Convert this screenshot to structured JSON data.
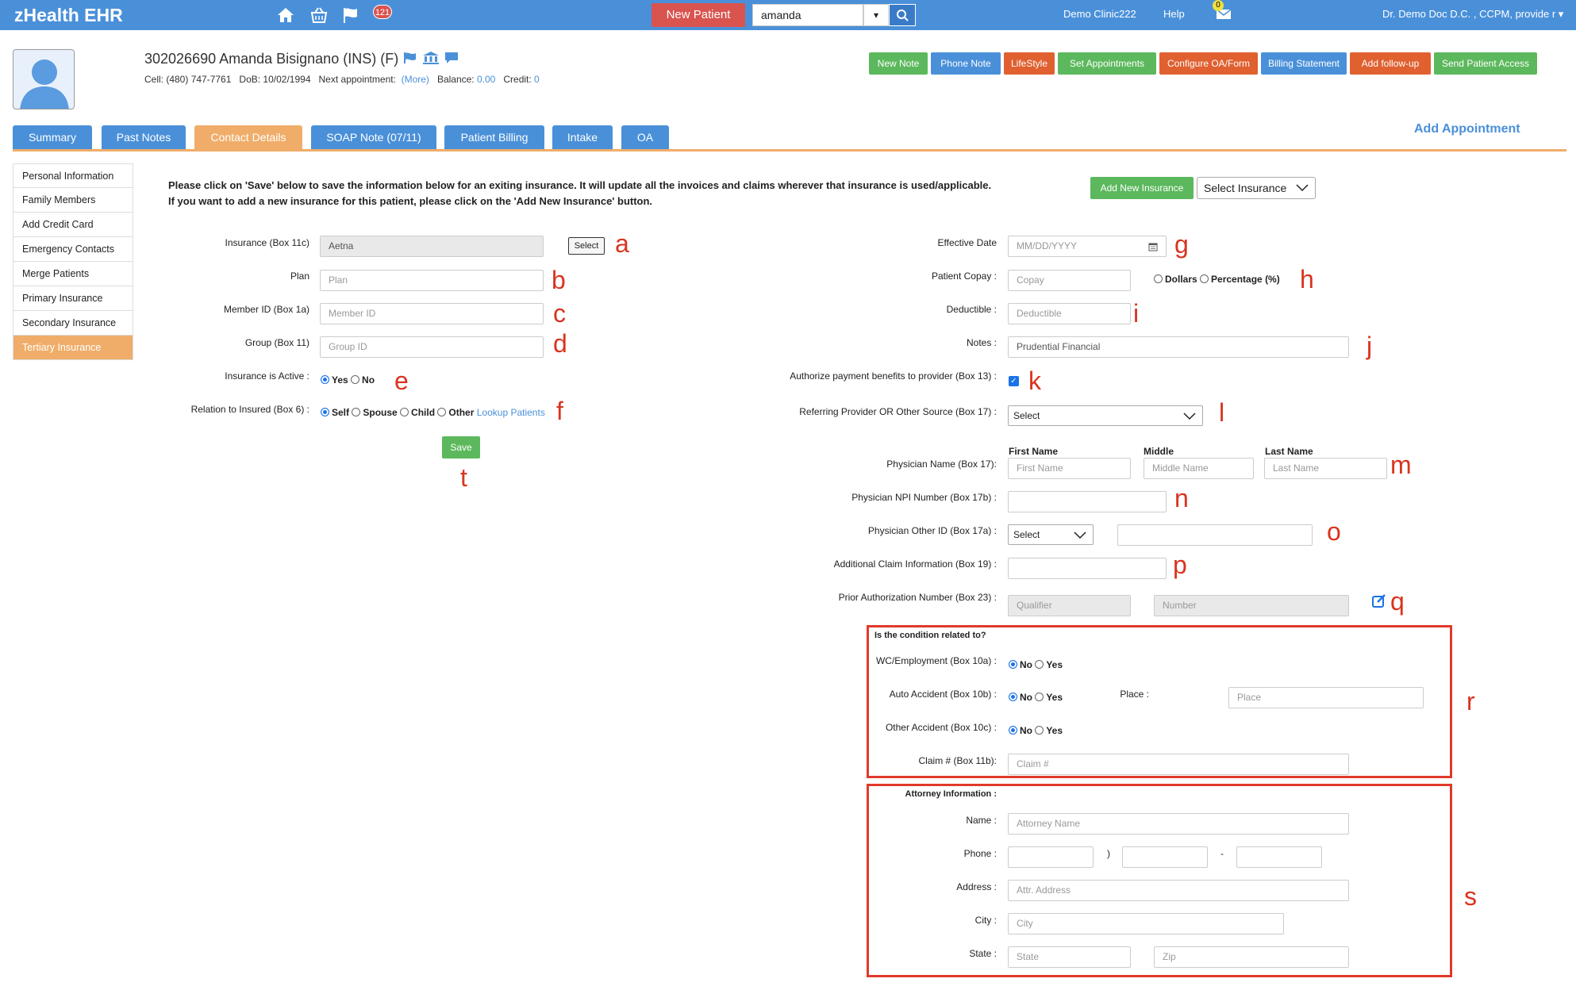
{
  "header": {
    "brand": "zHealth EHR",
    "notif_count": "121",
    "new_patient": "New Patient",
    "search_value": "amanda",
    "clinic": "Demo Clinic222",
    "help": "Help",
    "messages_count": "0",
    "user": "Dr. Demo Doc D.C. , CCPM, provide r"
  },
  "patient": {
    "title": "302026690 Amanda Bisignano  (INS) (F)",
    "cell": "Cell: (480) 747-7761",
    "dob": "DoB: 10/02/1994",
    "next_appt": "Next appointment:",
    "more": "(More)",
    "balance_label": "Balance:",
    "balance": "0.00",
    "credit_label": "Credit:",
    "credit": "0"
  },
  "actions": [
    "New Note",
    "Phone Note",
    "LifeStyle",
    "Set Appointments",
    "Configure OA/Form",
    "Billing Statement",
    "Add follow-up",
    "Send Patient Access"
  ],
  "tabs": [
    "Summary",
    "Past Notes",
    "Contact Details",
    "SOAP Note (07/11)",
    "Patient Billing",
    "Intake",
    "OA"
  ],
  "add_appointment": "Add Appointment",
  "sidebar": [
    "Personal Information",
    "Family Members",
    "Add Credit Card",
    "Emergency Contacts",
    "Merge Patients",
    "Primary Insurance",
    "Secondary Insurance",
    "Tertiary Insurance"
  ],
  "notice": {
    "line1": "Please click on 'Save' below to save the information below for an exiting insurance. It will update all the invoices and claims wherever that insurance is used/applicable.",
    "line2": "If you want to add a new insurance for this patient, please click on the 'Add New Insurance' button."
  },
  "add_new_insurance": "Add New Insurance",
  "select_insurance": "Select Insurance",
  "left_form": {
    "insurance_label": "Insurance (Box 11c)",
    "insurance_value": "Aetna",
    "select_btn": "Select",
    "plan_label": "Plan",
    "plan_ph": "Plan",
    "member_label": "Member ID (Box 1a)",
    "member_ph": "Member ID",
    "group_label": "Group (Box 11)",
    "group_ph": "Group ID",
    "active_label": "Insurance is Active :",
    "yes": "Yes",
    "no": "No",
    "relation_label": "Relation to Insured (Box 6) :",
    "self": "Self",
    "spouse": "Spouse",
    "child": "Child",
    "other": "Other",
    "lookup": "Lookup Patients",
    "save": "Save"
  },
  "right_form": {
    "eff_label": "Effective Date",
    "eff_ph": "MM/DD/YYYY",
    "copay_label": "Patient Copay :",
    "copay_ph": "Copay",
    "dollars": "Dollars",
    "percentage": "Percentage (%)",
    "deductible_label": "Deductible :",
    "deductible_ph": "Deductible",
    "notes_label": "Notes :",
    "notes_value": "Prudential Financial",
    "authorize_label": "Authorize payment benefits to provider (Box 13) :",
    "referring_label": "Referring Provider OR Other Source (Box 17) :",
    "referring_value": "Select",
    "first_name_head": "First Name",
    "middle_head": "Middle",
    "last_name_head": "Last Name",
    "physician_label": "Physician Name (Box 17):",
    "first_ph": "First Name",
    "middle_ph": "Middle Name",
    "last_ph": "Last Name",
    "npi_label": "Physician NPI Number (Box 17b) :",
    "other_id_label": "Physician Other ID (Box 17a) :",
    "other_id_select": "Select",
    "addl_label": "Additional Claim Information (Box 19) :",
    "prior_label": "Prior Authorization Number (Box 23) :",
    "qualifier_ph": "Qualifier",
    "number_ph": "Number"
  },
  "condition": {
    "title": "Is the condition related to?",
    "wc_label": "WC/Employment (Box 10a) :",
    "auto_label": "Auto Accident (Box 10b) :",
    "other_label": "Other Accident (Box 10c) :",
    "claim_label": "Claim # (Box 11b):",
    "claim_ph": "Claim #",
    "place_label": "Place :",
    "place_ph": "Place",
    "no": "No",
    "yes": "Yes"
  },
  "attorney": {
    "title": "Attorney Information :",
    "name_label": "Name :",
    "name_ph": "Attorney Name",
    "phone_label": "Phone :",
    "paren": ")",
    "dash": "-",
    "address_label": "Address :",
    "address_ph": "Attr. Address",
    "city_label": "City :",
    "city_ph": "City",
    "state_label": "State :",
    "state_ph": "State",
    "zip_ph": "Zip"
  },
  "annotations": [
    "a",
    "b",
    "c",
    "d",
    "e",
    "f",
    "g",
    "h",
    "i",
    "j",
    "k",
    "l",
    "m",
    "n",
    "o",
    "p",
    "q",
    "r",
    "s",
    "t"
  ]
}
